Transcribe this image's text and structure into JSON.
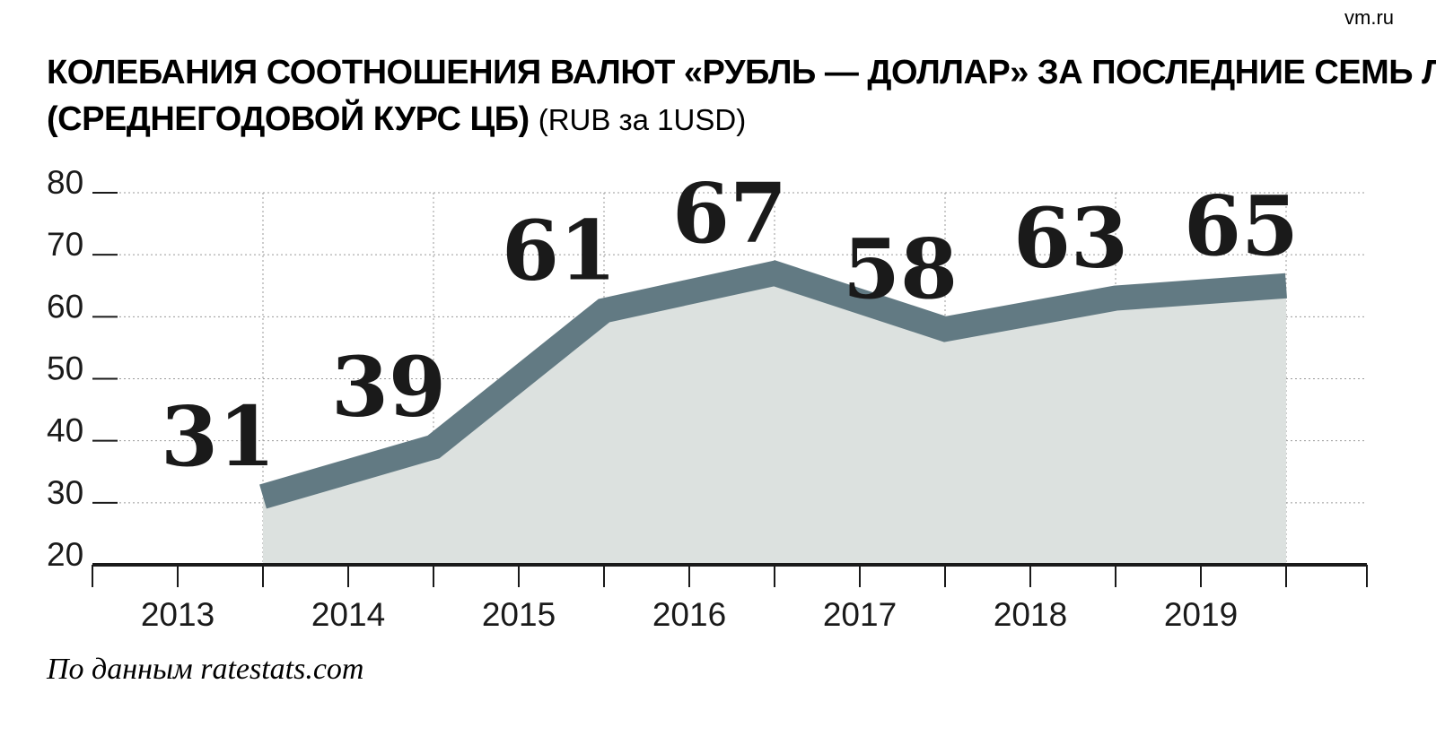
{
  "watermark": "vm.ru",
  "title": {
    "line1": "КОЛЕБАНИЯ СООТНОШЕНИЯ ВАЛЮТ «РУБЛЬ — ДОЛЛАР» ЗА ПОСЛЕДНИЕ СЕМЬ ЛЕТ",
    "line2": "(СРЕДНЕГОДОВОЙ КУРС ЦБ)",
    "unit": "(RUB за 1USD)"
  },
  "source": "По данным ratestats.com",
  "colors": {
    "line": "#627a83",
    "area": "#dce1df",
    "axis": "#1a1a1a",
    "grid": "#9a9a9a",
    "text": "#1a1a1a",
    "watermark": "#b5b5b5"
  },
  "chart_data": {
    "type": "area",
    "x": [
      "2013",
      "2014",
      "2015",
      "2016",
      "2017",
      "2018",
      "2019"
    ],
    "series": [
      {
        "values": [
          31,
          39,
          61,
          67,
          58,
          63,
          65
        ]
      }
    ],
    "data_labels": [
      "31",
      "39",
      "61",
      "67",
      "58",
      "63",
      "65"
    ],
    "y_ticks": [
      "20",
      "30",
      "40",
      "50",
      "60",
      "70",
      "80"
    ],
    "ylim": [
      20,
      80
    ],
    "grid": true,
    "xlabel": "",
    "ylabel": ""
  }
}
